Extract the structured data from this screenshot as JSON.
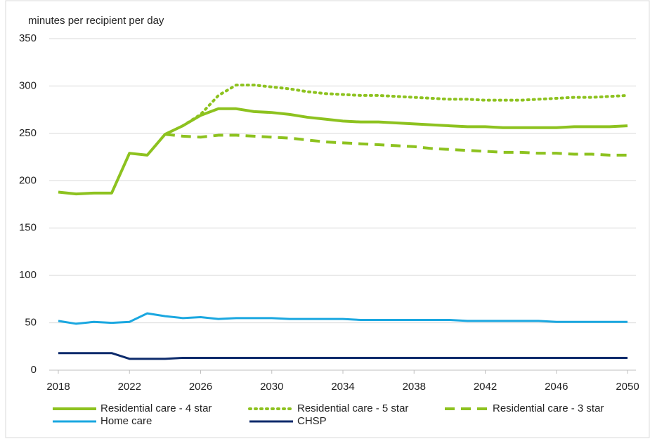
{
  "chart_data": {
    "type": "line",
    "y_axis_label": "minutes per recipient per day",
    "x": [
      2018,
      2019,
      2020,
      2021,
      2022,
      2023,
      2024,
      2025,
      2026,
      2027,
      2028,
      2029,
      2030,
      2031,
      2032,
      2033,
      2034,
      2035,
      2036,
      2037,
      2038,
      2039,
      2040,
      2041,
      2042,
      2043,
      2044,
      2045,
      2046,
      2047,
      2048,
      2049,
      2050
    ],
    "xlim": [
      2018,
      2050
    ],
    "xticks": [
      2018,
      2022,
      2026,
      2030,
      2034,
      2038,
      2042,
      2046,
      2050
    ],
    "ylim": [
      0,
      350
    ],
    "yticks": [
      0,
      50,
      100,
      150,
      200,
      250,
      300,
      350
    ],
    "grid": true,
    "legend": "bottom",
    "series": [
      {
        "name": "Residential care - 4 star",
        "color": "#8dc21f",
        "style": "solid",
        "values": [
          188,
          186,
          187,
          187,
          229,
          227,
          249,
          258,
          269,
          276,
          276,
          273,
          272,
          270,
          267,
          265,
          263,
          262,
          262,
          261,
          260,
          259,
          258,
          257,
          257,
          256,
          256,
          256,
          256,
          257,
          257,
          257,
          258
        ]
      },
      {
        "name": "Residential care - 5 star",
        "color": "#8dc21f",
        "style": "dotted",
        "values": [
          null,
          null,
          null,
          null,
          null,
          null,
          null,
          258,
          270,
          290,
          301,
          301,
          299,
          297,
          294,
          292,
          291,
          290,
          290,
          289,
          288,
          287,
          286,
          286,
          285,
          285,
          285,
          286,
          287,
          288,
          288,
          289,
          290
        ]
      },
      {
        "name": "Residential care - 3 star",
        "color": "#8dc21f",
        "style": "dashed",
        "values": [
          null,
          null,
          null,
          null,
          null,
          null,
          249,
          247,
          246,
          248,
          248,
          247,
          246,
          245,
          243,
          241,
          240,
          239,
          238,
          237,
          236,
          234,
          233,
          232,
          231,
          230,
          230,
          229,
          229,
          228,
          228,
          227,
          227
        ]
      },
      {
        "name": "Home care",
        "color": "#1aa7e0",
        "style": "solid",
        "values": [
          52,
          49,
          51,
          50,
          51,
          60,
          57,
          55,
          56,
          54,
          55,
          55,
          55,
          54,
          54,
          54,
          54,
          53,
          53,
          53,
          53,
          53,
          53,
          52,
          52,
          52,
          52,
          52,
          51,
          51,
          51,
          51,
          51
        ]
      },
      {
        "name": "CHSP",
        "color": "#0c2a6b",
        "style": "solid",
        "values": [
          18,
          18,
          18,
          18,
          12,
          12,
          12,
          13,
          13,
          13,
          13,
          13,
          13,
          13,
          13,
          13,
          13,
          13,
          13,
          13,
          13,
          13,
          13,
          13,
          13,
          13,
          13,
          13,
          13,
          13,
          13,
          13,
          13
        ]
      }
    ]
  }
}
